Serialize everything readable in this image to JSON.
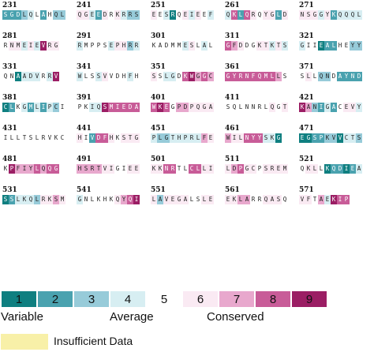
{
  "colors": {
    "1": "#0f7f80",
    "2": "#4aa2af",
    "3": "#97cbd9",
    "4": "#d7eef2",
    "5": "#ffffff",
    "6": "#faeaf3",
    "7": "#e8a8cd",
    "8": "#c85c98",
    "9": "#9b1e64",
    "insufficient": "#f8f0a8"
  },
  "blocks": [
    {
      "start": "231",
      "residues": "SGDLQLAHQL",
      "grades": "2223452533"
    },
    {
      "start": "241",
      "residues": "QGEEDRKRRS",
      "grades": "6642656433"
    },
    {
      "start": "251",
      "residues": "EESRQEIEEF",
      "grades": "6541564654"
    },
    {
      "start": "261",
      "residues": "QKLQRQYGLD",
      "grades": "4828656626"
    },
    {
      "start": "271",
      "residues": "NSGGYKQQQL",
      "grades": "6664624444"
    },
    {
      "start": "281",
      "residues": "RNMEIEVRG",
      "grades": "566464966"
    },
    {
      "start": "291",
      "residues": "RMPPSEPHRR",
      "grades": "4555546634"
    },
    {
      "start": "301",
      "residues": "KADMMESLAL",
      "grades": "5555546545"
    },
    {
      "start": "311",
      "residues": "GFDDGKTKTS",
      "grades": "8765566464"
    },
    {
      "start": "321",
      "residues": "GIIEALHEYY",
      "grades": "4551225533"
    },
    {
      "start": "331",
      "residues": "QNAADVRRV",
      "grades": "551444549"
    },
    {
      "start": "341",
      "residues": "WLSSVVDHFH",
      "grades": "4554655545"
    },
    {
      "start": "351",
      "residues": "SSLGDKWGGC",
      "grades": "6544589787"
    },
    {
      "start": "361",
      "residues": "GYRNFQMLLS",
      "grades": "8888888875"
    },
    {
      "start": "371",
      "residues": "SLLQNDAYND",
      "grades": "5653352222"
    },
    {
      "start": "381",
      "residues": "CLKGMLIPCI",
      "grades": "1254242435"
    },
    {
      "start": "391",
      "residues": "PKIQSMIEDA",
      "grades": "5544988888"
    },
    {
      "start": "401",
      "residues": "WKEGPDPQGA",
      "grades": "8985776666"
    },
    {
      "start": "411",
      "residues": "SQLNNRLQGT",
      "grades": "5555555656"
    },
    {
      "start": "421",
      "residues": "KANIGACEVY",
      "grades": "9732425664"
    },
    {
      "start": "431",
      "residues": "ILLTSLRVKC",
      "grades": "5555555555"
    },
    {
      "start": "441",
      "residues": "HIVDFHKSTG",
      "grades": "6528865666"
    },
    {
      "start": "451",
      "residues": "PLGTHPRLFE",
      "grades": "4334444476"
    },
    {
      "start": "461",
      "residues": "WILNYYSKG",
      "grades": "766888441"
    },
    {
      "start": "471",
      "residues": "EGSPKVVCTS",
      "grades": "1122331443"
    },
    {
      "start": "481",
      "residues": "KPFIYLQQG",
      "grades": "597778788"
    },
    {
      "start": "491",
      "residues": "HSRTVIGIEE",
      "grades": "7777665566"
    },
    {
      "start": "501",
      "residues": "KKNRTLCLLI",
      "grades": "6688558866"
    },
    {
      "start": "511",
      "residues": "LDPGCPSREM",
      "grades": "6786656666"
    },
    {
      "start": "521",
      "residues": "QKLLKQDIEA",
      "grades": "5665122124"
    },
    {
      "start": "531",
      "residues": "SSLKQLRKSM",
      "grades": "1244436676"
    },
    {
      "start": "541",
      "residues": "GNLKHKQYQI",
      "grades": "4555556789"
    },
    {
      "start": "551",
      "residues": "LAVEGALSLE",
      "grades": "6366665566"
    },
    {
      "start": "561",
      "residues": "EKLARRQASQ",
      "grades": "6677556665"
    },
    {
      "start": "571",
      "residues": "VFTAEKIP",
      "grades": "66574988"
    }
  ],
  "legend": {
    "grades": [
      "1",
      "2",
      "3",
      "4",
      "5",
      "6",
      "7",
      "8",
      "9"
    ],
    "variable_label": "Variable",
    "average_label": "Average",
    "conserved_label": "Conserved",
    "insufficient_label": "Insufficient Data"
  }
}
